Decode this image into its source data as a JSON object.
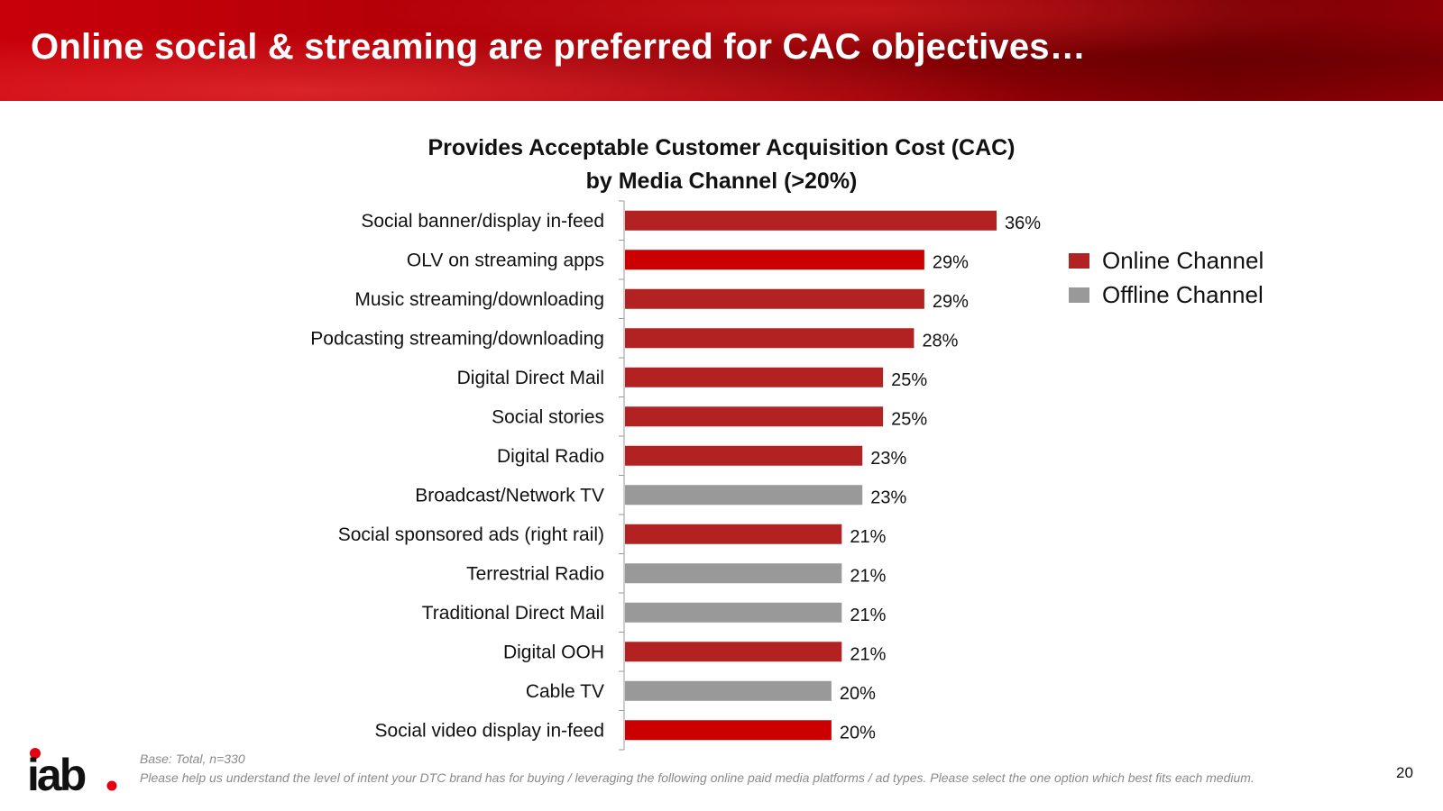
{
  "header": {
    "title": "Online social & streaming are preferred for CAC objectives…"
  },
  "colors": {
    "online": "#b22222",
    "online_bright": "#cc0000",
    "offline": "#999999",
    "header": "#b00008"
  },
  "chart_data": {
    "type": "bar",
    "orientation": "horizontal",
    "title": "Provides Acceptable Customer Acquisition Cost (CAC)",
    "subtitle": "by Media Channel (>20%)",
    "xlim": [
      0,
      40
    ],
    "unit": "%",
    "categories": [
      "Social banner/display in-feed",
      "OLV on streaming apps",
      "Music streaming/downloading",
      "Podcasting streaming/downloading",
      "Digital Direct Mail",
      "Social stories",
      "Digital Radio",
      "Broadcast/Network TV",
      "Social sponsored ads (right rail)",
      "Terrestrial Radio",
      "Traditional Direct Mail",
      "Digital OOH",
      "Cable TV",
      "Social video display in-feed"
    ],
    "values": [
      36,
      29,
      29,
      28,
      25,
      25,
      23,
      23,
      21,
      21,
      21,
      21,
      20,
      20
    ],
    "value_labels": [
      "36%",
      "29%",
      "29%",
      "28%",
      "25%",
      "25%",
      "23%",
      "23%",
      "21%",
      "21%",
      "21%",
      "21%",
      "20%",
      "20%"
    ],
    "channel": [
      "Online",
      "Online",
      "Online",
      "Online",
      "Online",
      "Online",
      "Online",
      "Offline",
      "Online",
      "Offline",
      "Offline",
      "Online",
      "Offline",
      "Online"
    ],
    "highlight": [
      false,
      true,
      false,
      false,
      false,
      false,
      false,
      false,
      false,
      false,
      false,
      false,
      false,
      true
    ],
    "legend": [
      {
        "label": "Online Channel",
        "channel": "Online"
      },
      {
        "label": "Offline Channel",
        "channel": "Offline"
      }
    ],
    "legend_position": "right"
  },
  "footer": {
    "logo_text": "iab",
    "base_note": "Base: Total, n=330",
    "question_note": "Please help us understand the level of intent your DTC brand has for buying / leveraging the following online paid media platforms / ad types. Please select the one option which best fits each medium.",
    "page_number": "20"
  }
}
